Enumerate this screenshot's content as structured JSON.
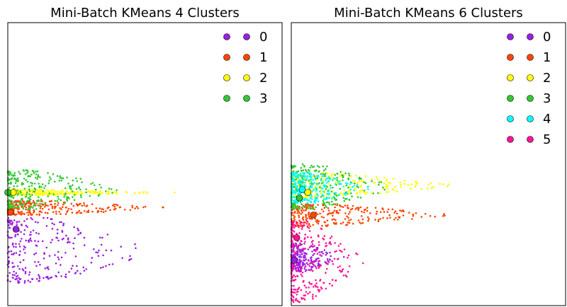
{
  "chart_data": [
    {
      "type": "scatter",
      "title": "Mini-Batch KMeans 4 Clusters",
      "xlabel": "",
      "ylabel": "",
      "xlim": [
        0,
        1
      ],
      "ylim": [
        0,
        1
      ],
      "grid": false,
      "ticks": false,
      "legend": {
        "placement": "top-right",
        "columns": 2
      },
      "clusters": [
        {
          "label": "0",
          "color": "#9b1fe0",
          "center": [
            0.03,
            0.27
          ],
          "y": [
            0.08,
            0.31
          ],
          "reach": 0.58
        },
        {
          "label": "1",
          "color": "#ff4500",
          "center": [
            0.01,
            0.33
          ],
          "y": [
            0.32,
            0.37
          ],
          "reach": 0.62
        },
        {
          "label": "2",
          "color": "#ffff00",
          "center": [
            0.02,
            0.4
          ],
          "y": [
            0.39,
            0.41
          ],
          "reach": 0.62
        },
        {
          "label": "3",
          "color": "#32c832",
          "center": [
            0.0,
            0.4
          ],
          "y": [
            0.34,
            0.48
          ],
          "reach": 0.45
        }
      ]
    },
    {
      "type": "scatter",
      "title": "Mini-Batch KMeans 6 Clusters",
      "xlabel": "",
      "ylabel": "",
      "xlim": [
        0,
        1
      ],
      "ylim": [
        0,
        1
      ],
      "grid": false,
      "ticks": false,
      "legend": {
        "placement": "top-right",
        "columns": 2
      },
      "clusters": [
        {
          "label": "0",
          "color": "#9b1fe0",
          "center": [
            0.01,
            0.16
          ],
          "y": [
            0.12,
            0.22
          ],
          "reach": 0.2
        },
        {
          "label": "1",
          "color": "#ff4500",
          "center": [
            0.08,
            0.32
          ],
          "y": [
            0.28,
            0.36
          ],
          "reach": 0.6
        },
        {
          "label": "2",
          "color": "#ffff00",
          "center": [
            0.06,
            0.4
          ],
          "y": [
            0.38,
            0.47
          ],
          "reach": 0.62
        },
        {
          "label": "3",
          "color": "#32c832",
          "center": [
            0.03,
            0.38
          ],
          "y": [
            0.34,
            0.5
          ],
          "reach": 0.4
        },
        {
          "label": "4",
          "color": "#00ffff",
          "center": [
            0.04,
            0.41
          ],
          "y": [
            0.36,
            0.47
          ],
          "reach": 0.3
        },
        {
          "label": "5",
          "color": "#ff1493",
          "center": [
            0.02,
            0.24
          ],
          "y": [
            0.01,
            0.3
          ],
          "reach": 0.28
        }
      ]
    }
  ]
}
